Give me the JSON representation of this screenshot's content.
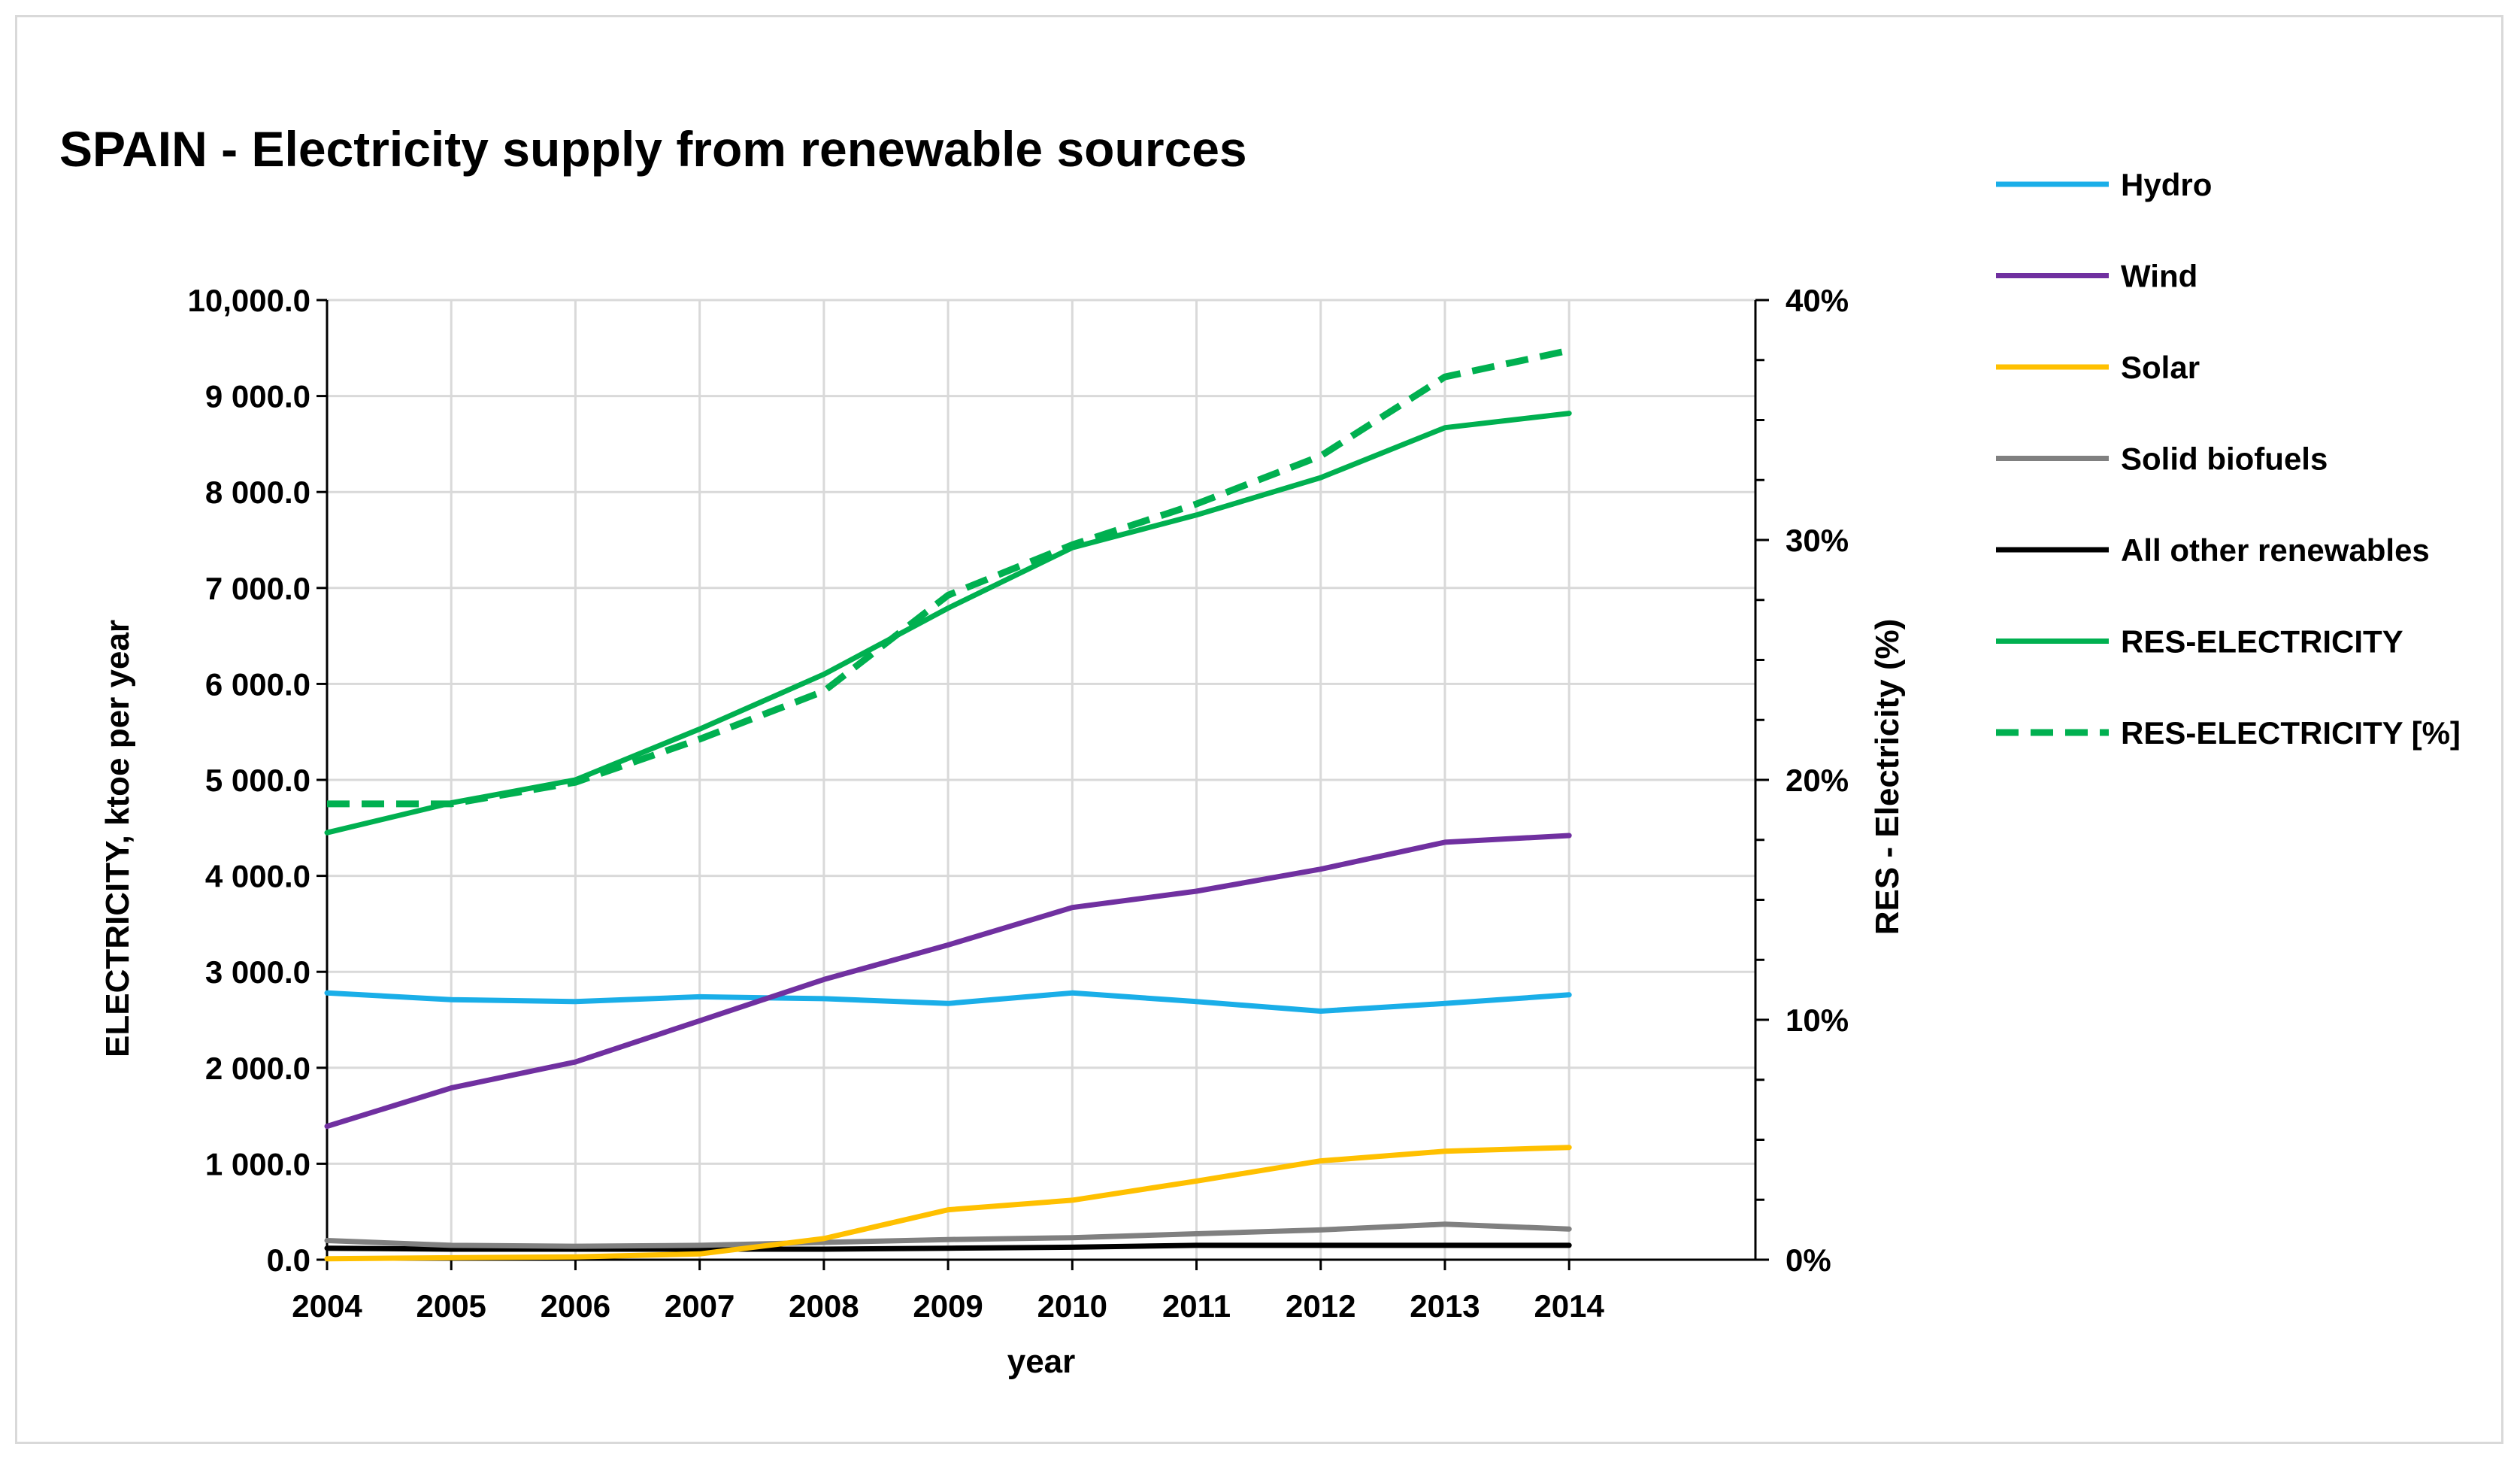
{
  "chart_data": {
    "type": "line",
    "title": "SPAIN - Electricity supply from renewable sources",
    "xlabel": "year",
    "ylabel": "ELECTRICITY, ktoe per year",
    "y2label": "RES - Electricity (%)",
    "x": [
      2004,
      2005,
      2006,
      2007,
      2008,
      2009,
      2010,
      2011,
      2012,
      2013,
      2014
    ],
    "ylim": [
      0,
      10000
    ],
    "y2lim": [
      0,
      40
    ],
    "y_ticks": [
      "0.0",
      "1 000.0",
      "2 000.0",
      "3 000.0",
      "4 000.0",
      "5 000.0",
      "6 000.0",
      "7 000.0",
      "8 000.0",
      "9 000.0",
      "10,000.0"
    ],
    "y2_ticks": [
      "0%",
      "10%",
      "20%",
      "30%",
      "40%"
    ],
    "grid": true,
    "legend_position": "right",
    "series": [
      {
        "name": "Hydro",
        "axis": "left",
        "color": "#1aaee8",
        "dash": false,
        "values": [
          2780,
          2710,
          2690,
          2740,
          2720,
          2670,
          2780,
          2690,
          2590,
          2670,
          2760
        ]
      },
      {
        "name": "Wind",
        "axis": "left",
        "color": "#7030a0",
        "dash": false,
        "values": [
          1390,
          1790,
          2060,
          2490,
          2920,
          3280,
          3670,
          3840,
          4070,
          4350,
          4420
        ]
      },
      {
        "name": "Solar",
        "axis": "left",
        "color": "#ffc000",
        "dash": false,
        "values": [
          10,
          20,
          30,
          60,
          220,
          520,
          620,
          820,
          1030,
          1130,
          1170
        ]
      },
      {
        "name": "Solid biofuels",
        "axis": "left",
        "color": "#808080",
        "dash": false,
        "values": [
          200,
          150,
          140,
          150,
          180,
          210,
          230,
          270,
          310,
          370,
          320
        ]
      },
      {
        "name": "All other renewables",
        "axis": "left",
        "color": "#000000",
        "dash": false,
        "values": [
          120,
          110,
          110,
          110,
          110,
          120,
          130,
          150,
          150,
          150,
          150
        ]
      },
      {
        "name": "RES-ELECTRICITY",
        "axis": "left",
        "color": "#00b050",
        "dash": false,
        "values": [
          4450,
          4760,
          5000,
          5530,
          6100,
          6790,
          7420,
          7760,
          8150,
          8670,
          8820
        ]
      },
      {
        "name": "RES-ELECTRICITY [%]",
        "axis": "right",
        "color": "#00b050",
        "dash": true,
        "values": [
          19.0,
          19.0,
          19.9,
          21.7,
          23.7,
          27.7,
          29.8,
          31.5,
          33.5,
          36.8,
          37.9
        ]
      }
    ]
  }
}
